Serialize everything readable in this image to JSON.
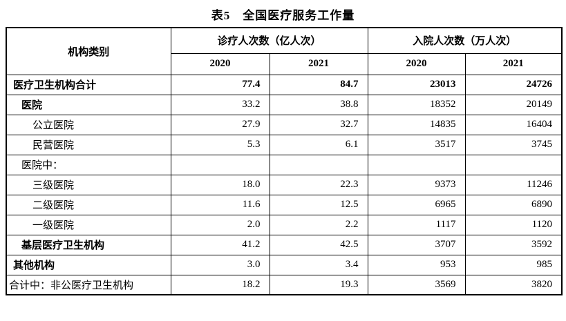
{
  "title": "表5　全国医疗服务工作量",
  "table": {
    "header": {
      "category": "机构类别",
      "group_outpatient": "诊疗人次数（亿人次）",
      "group_inpatient": "入院人次数（万人次）",
      "years": [
        "2020",
        "2021",
        "2020",
        "2021"
      ]
    },
    "rows": [
      {
        "label": "医疗卫生机构合计",
        "values": [
          "77.4",
          "84.7",
          "23013",
          "24726"
        ]
      },
      {
        "label": "医院",
        "values": [
          "33.2",
          "38.8",
          "18352",
          "20149"
        ]
      },
      {
        "label": "公立医院",
        "values": [
          "27.9",
          "32.7",
          "14835",
          "16404"
        ]
      },
      {
        "label": "民营医院",
        "values": [
          "5.3",
          "6.1",
          "3517",
          "3745"
        ]
      },
      {
        "label": "医院中：",
        "values": [
          "",
          "",
          "",
          ""
        ]
      },
      {
        "label": "三级医院",
        "values": [
          "18.0",
          "22.3",
          "9373",
          "11246"
        ]
      },
      {
        "label": "二级医院",
        "values": [
          "11.6",
          "12.5",
          "6965",
          "6890"
        ]
      },
      {
        "label": "一级医院",
        "values": [
          "2.0",
          "2.2",
          "1117",
          "1120"
        ]
      },
      {
        "label": "基层医疗卫生机构",
        "values": [
          "41.2",
          "42.5",
          "3707",
          "3592"
        ]
      },
      {
        "label": "其他机构",
        "values": [
          "3.0",
          "3.4",
          "953",
          "985"
        ]
      },
      {
        "label": "合计中：非公医疗卫生机构",
        "values": [
          "18.2",
          "19.3",
          "3569",
          "3820"
        ]
      }
    ]
  }
}
